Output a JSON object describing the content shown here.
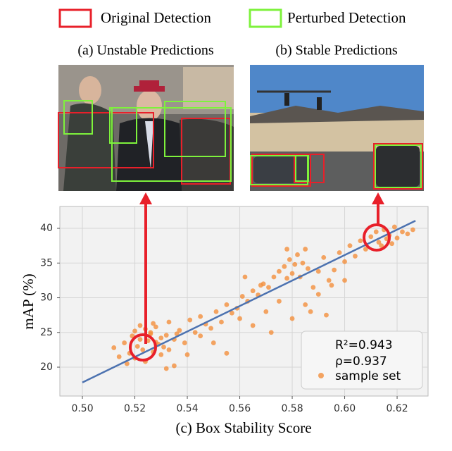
{
  "figure": {
    "legend": [
      {
        "name": "Original Detection",
        "color": "#e8202a"
      },
      {
        "name": "Perturbed Detection",
        "color": "#7ef23c"
      }
    ],
    "panel_titles": [
      "(a) Unstable Predictions",
      "(b) Stable Predictions"
    ]
  },
  "chart_data": {
    "type": "scatter",
    "xlabel": "(c) Box Stability Score",
    "ylabel": "mAP (%)",
    "xlim": [
      0.4914,
      0.6318
    ],
    "ylim": [
      15.84,
      43.15
    ],
    "xticks": [
      {
        "value": 0.5,
        "label": "0.50"
      },
      0.52,
      0.54,
      0.56,
      0.58,
      {
        "value": 0.6,
        "label": "0.60"
      },
      0.62
    ],
    "yticks": [
      20,
      25,
      30,
      35,
      40
    ],
    "grid": true,
    "annotations": [
      "R²=0.943",
      "ρ=0.937"
    ],
    "fit_line": {
      "color": "#4c72b0",
      "x": [
        0.5,
        0.627
      ],
      "y": [
        17.8,
        41.1
      ]
    },
    "series": [
      {
        "name": "sample set",
        "color": "#f28e3c",
        "x": [
          0.512,
          0.514,
          0.516,
          0.518,
          0.519,
          0.52,
          0.521,
          0.522,
          0.523,
          0.524,
          0.525,
          0.526,
          0.527,
          0.528,
          0.529,
          0.53,
          0.531,
          0.532,
          0.52,
          0.522,
          0.524,
          0.526,
          0.528,
          0.53,
          0.517,
          0.533,
          0.535,
          0.537,
          0.539,
          0.541,
          0.543,
          0.545,
          0.547,
          0.549,
          0.551,
          0.553,
          0.555,
          0.557,
          0.559,
          0.561,
          0.563,
          0.565,
          0.567,
          0.569,
          0.571,
          0.573,
          0.575,
          0.577,
          0.578,
          0.579,
          0.58,
          0.581,
          0.582,
          0.583,
          0.584,
          0.585,
          0.586,
          0.588,
          0.59,
          0.592,
          0.594,
          0.596,
          0.598,
          0.6,
          0.602,
          0.604,
          0.606,
          0.608,
          0.61,
          0.612,
          0.613,
          0.614,
          0.615,
          0.616,
          0.617,
          0.618,
          0.619,
          0.62,
          0.622,
          0.624,
          0.626,
          0.533,
          0.536,
          0.54,
          0.545,
          0.55,
          0.555,
          0.56,
          0.565,
          0.57,
          0.575,
          0.58,
          0.585,
          0.59,
          0.595,
          0.6,
          0.532,
          0.527,
          0.535,
          0.562,
          0.568,
          0.572,
          0.587,
          0.593,
          0.578
        ],
        "y": [
          22.8,
          21.5,
          23.5,
          22.0,
          24.5,
          25.2,
          23.0,
          24.0,
          22.5,
          25.5,
          23.8,
          24.8,
          22.2,
          25.8,
          23.3,
          24.2,
          22.9,
          24.6,
          21.3,
          26.0,
          20.8,
          25.0,
          23.6,
          21.8,
          20.5,
          26.5,
          24.0,
          25.3,
          23.5,
          26.8,
          25.0,
          27.3,
          26.2,
          25.6,
          28.0,
          26.5,
          29.0,
          27.8,
          28.5,
          30.2,
          29.5,
          31.0,
          30.4,
          32.0,
          31.5,
          33.0,
          33.8,
          34.5,
          32.8,
          35.5,
          33.5,
          34.8,
          36.2,
          33.0,
          35.0,
          37.0,
          34.2,
          31.5,
          33.8,
          35.8,
          32.5,
          34.0,
          36.5,
          35.2,
          37.5,
          36.0,
          38.2,
          37.0,
          38.8,
          39.5,
          38.0,
          37.5,
          39.8,
          38.5,
          39.0,
          37.8,
          40.2,
          38.6,
          39.5,
          39.2,
          39.8,
          22.5,
          24.8,
          21.8,
          24.5,
          23.5,
          22.0,
          27.0,
          26.0,
          28.0,
          29.5,
          27.0,
          29.0,
          30.5,
          31.8,
          32.5,
          19.8,
          26.3,
          20.2,
          33.0,
          31.8,
          25.0,
          28.0,
          27.5,
          37.0
        ]
      }
    ]
  }
}
